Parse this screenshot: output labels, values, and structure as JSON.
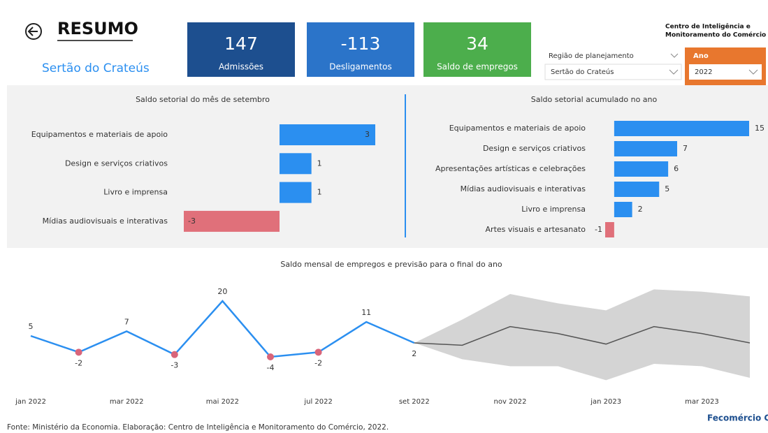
{
  "header": {
    "title": "RESUMO",
    "region": "Sertão do Crateús",
    "org": [
      "Centro de Inteligência e",
      "Monitoramento do Comércio"
    ]
  },
  "kpis": [
    {
      "value": 147,
      "label": "Admissões",
      "color": "#1d4f8f"
    },
    {
      "value": -113,
      "label": "Desligamentos",
      "color": "#2b74c9"
    },
    {
      "value": 34,
      "label": "Saldo de empregos",
      "color": "#4cae4c"
    }
  ],
  "filters": [
    {
      "label": "Região de planejamento",
      "selected": "Sertão do Crateús"
    },
    {
      "label": "Ano",
      "selected": "2022"
    }
  ],
  "chart_data": [
    {
      "type": "hbar",
      "title": "Saldo setorial do mês de setembro",
      "categories": [
        "Equipamentos e materiais de apoio",
        "Design e serviços criativos",
        "Livro e imprensa",
        "Mídias audiovisuais e interativas"
      ],
      "values": [
        3,
        1,
        1,
        -3
      ],
      "color": "#2b8ff0",
      "negative_color": "#e0707a",
      "xlim": [
        -3,
        3
      ]
    },
    {
      "type": "hbar",
      "title": "Saldo setorial acumulado no ano",
      "categories": [
        "Equipamentos e materiais de apoio",
        "Design e serviços criativos",
        "Apresentações artísticas e celebrações",
        "Mídias audiovisuais e interativas",
        "Livro e imprensa",
        "Artes visuais e artesanato"
      ],
      "values": [
        15,
        7,
        6,
        5,
        2,
        -1
      ],
      "color": "#2b8ff0",
      "negative_color": "#e0707a",
      "xlim": [
        -1,
        15
      ]
    },
    {
      "type": "line",
      "title": "Saldo mensal de empregos e previsão para o final do ano",
      "categories": [
        "jan 2022",
        null,
        "mar 2022",
        null,
        "mai 2022",
        null,
        "jul 2022",
        null,
        "set 2022",
        null,
        "nov 2022",
        null,
        "jan 2023",
        null,
        "mar 2023",
        null
      ],
      "ylim": [
        -16,
        26
      ],
      "series": [
        {
          "color": "#2b8ff0",
          "negative_marker_color": "#d9657a",
          "values": [
            5,
            -2,
            7,
            -3,
            20,
            -4,
            -2,
            11,
            2,
            null,
            null,
            null,
            null,
            null,
            null,
            null
          ]
        },
        {
          "color": "#555555",
          "values": [
            null,
            null,
            null,
            null,
            null,
            null,
            null,
            null,
            2,
            1,
            9,
            6,
            1.5,
            9,
            6,
            2
          ]
        }
      ],
      "band": {
        "color": "#d4d4d4",
        "lower": [
          null,
          null,
          null,
          null,
          null,
          null,
          null,
          null,
          2,
          -5,
          -8,
          -8,
          -14,
          -7,
          -8,
          -13
        ],
        "upper": [
          null,
          null,
          null,
          null,
          null,
          null,
          null,
          null,
          2,
          12,
          23,
          19,
          16,
          25,
          24,
          22
        ]
      }
    }
  ],
  "footer": {
    "source": "Fonte: Ministério da Economia. Elaboração: Centro de Inteligência e Monitoramento do Comércio, 2022.",
    "logo": "Fecomércio CE"
  }
}
